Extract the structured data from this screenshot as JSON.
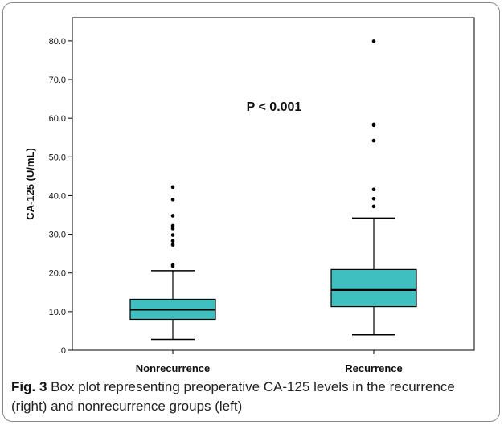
{
  "chart_data": {
    "type": "box",
    "categories": [
      "Nonrecurrence",
      "Recurrence"
    ],
    "ylabel": "CA-125 (U/mL)",
    "xlabel": "",
    "ylim": [
      0,
      86
    ],
    "yticks": [
      0,
      10,
      20,
      30,
      40,
      50,
      60,
      70,
      80
    ],
    "ytick_labels": [
      ".0",
      "10.0",
      "20.0",
      "30.0",
      "40.0",
      "50.0",
      "60.0",
      "70.0",
      "80.0"
    ],
    "annotation": "P < 0.001",
    "grid": false,
    "box_color": "#3fbfbf",
    "groups": [
      {
        "name": "Nonrecurrence",
        "whisker_low": 2.8,
        "q1": 8.0,
        "median": 10.5,
        "q3": 13.2,
        "whisker_high": 20.6,
        "outliers": [
          21.8,
          22.2,
          27.3,
          28.3,
          29.8,
          31.5,
          32.2,
          34.8,
          39.0,
          42.2
        ]
      },
      {
        "name": "Recurrence",
        "whisker_low": 4.0,
        "q1": 11.3,
        "median": 15.6,
        "q3": 20.9,
        "whisker_high": 34.2,
        "outliers": [
          37.2,
          39.2,
          41.6,
          54.2,
          58.2,
          58.4,
          79.9
        ]
      }
    ]
  },
  "caption": {
    "label": "Fig. 3",
    "text": "Box plot representing preoperative CA-125 levels in the recurrence (right) and nonrecurrence groups (left)"
  }
}
